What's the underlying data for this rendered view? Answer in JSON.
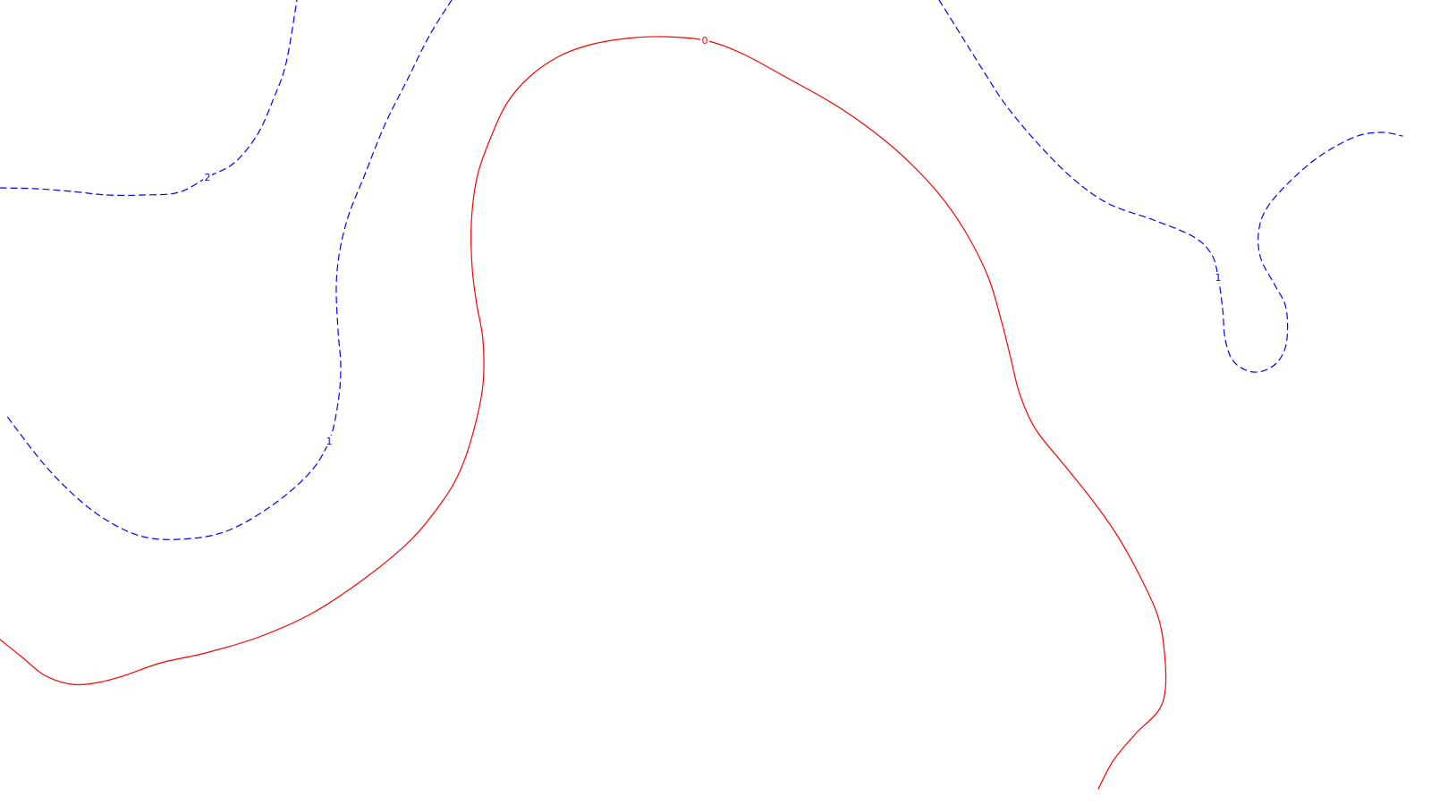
{
  "chart_data": {
    "type": "contour",
    "title": "",
    "xlabel": "",
    "ylabel": "",
    "colors": {
      "positive": "#0000ff",
      "zero": "#ff0000"
    },
    "line_styles": {
      "positive": "dashed",
      "zero": "solid"
    },
    "levels": [
      {
        "level": 2,
        "label": "2",
        "color": "#0000ff",
        "style": "dashed",
        "segments": [
          [
            [
              0,
              210
            ],
            [
              40,
              211
            ],
            [
              80,
              214
            ],
            [
              120,
              218
            ],
            [
              160,
              218
            ],
            [
              200,
              215
            ],
            [
              232,
              198
            ],
            [
              262,
              182
            ],
            [
              288,
              150
            ],
            [
              306,
              110
            ],
            [
              320,
              70
            ],
            [
              332,
              0
            ]
          ]
        ],
        "label_points": [
          [
            232,
            198
          ]
        ]
      },
      {
        "level": 1,
        "label": "1",
        "color": "#0000ff",
        "style": "dashed",
        "segments": [
          [
            [
              505,
              0
            ],
            [
              480,
              40
            ],
            [
              455,
              90
            ],
            [
              430,
              140
            ],
            [
              408,
              195
            ],
            [
              390,
              240
            ],
            [
              380,
              280
            ],
            [
              376,
              320
            ],
            [
              378,
              370
            ],
            [
              381,
              410
            ],
            [
              378,
              450
            ],
            [
              368,
              493
            ],
            [
              345,
              530
            ],
            [
              300,
              568
            ],
            [
              250,
              595
            ],
            [
              200,
              603
            ],
            [
              160,
              600
            ],
            [
              125,
              585
            ],
            [
              90,
              560
            ],
            [
              50,
              520
            ],
            [
              6,
              463
            ]
          ],
          [
            [
              1050,
              0
            ],
            [
              1075,
              40
            ],
            [
              1100,
              80
            ],
            [
              1125,
              118
            ],
            [
              1160,
              160
            ],
            [
              1200,
              200
            ],
            [
              1240,
              228
            ],
            [
              1290,
              246
            ],
            [
              1335,
              265
            ],
            [
              1355,
              285
            ],
            [
              1362,
              310
            ],
            [
              1367,
              345
            ],
            [
              1370,
              380
            ],
            [
              1380,
              405
            ],
            [
              1402,
              416
            ],
            [
              1425,
              408
            ],
            [
              1438,
              385
            ],
            [
              1438,
              345
            ],
            [
              1425,
              318
            ],
            [
              1410,
              290
            ],
            [
              1407,
              262
            ],
            [
              1415,
              235
            ],
            [
              1440,
              205
            ],
            [
              1475,
              175
            ],
            [
              1515,
              153
            ],
            [
              1545,
              148
            ],
            [
              1568,
              152
            ]
          ]
        ],
        "label_points": [
          [
            368,
            493
          ],
          [
            1362,
            310
          ]
        ]
      },
      {
        "level": 0,
        "label": "0",
        "color": "#ff0000",
        "style": "solid",
        "segments": [
          [
            [
              0,
              715
            ],
            [
              25,
              735
            ],
            [
              50,
              755
            ],
            [
              80,
              765
            ],
            [
              110,
              763
            ],
            [
              140,
              755
            ],
            [
              180,
              741
            ],
            [
              230,
              730
            ],
            [
              290,
              712
            ],
            [
              350,
              685
            ],
            [
              410,
              645
            ],
            [
              460,
              603
            ],
            [
              495,
              560
            ],
            [
              515,
              525
            ],
            [
              530,
              480
            ],
            [
              540,
              430
            ],
            [
              540,
              380
            ],
            [
              533,
              340
            ],
            [
              528,
              300
            ],
            [
              527,
              250
            ],
            [
              533,
              200
            ],
            [
              547,
              158
            ],
            [
              567,
              115
            ],
            [
              593,
              85
            ],
            [
              625,
              63
            ],
            [
              660,
              50
            ],
            [
              700,
              43
            ],
            [
              740,
              41
            ],
            [
              788,
              45
            ],
            [
              830,
              60
            ],
            [
              880,
              87
            ],
            [
              930,
              115
            ],
            [
              970,
              142
            ],
            [
              1010,
              175
            ],
            [
              1050,
              217
            ],
            [
              1080,
              260
            ],
            [
              1105,
              310
            ],
            [
              1120,
              360
            ],
            [
              1130,
              400
            ],
            [
              1140,
              440
            ],
            [
              1158,
              480
            ],
            [
              1190,
              520
            ],
            [
              1222,
              560
            ],
            [
              1250,
              600
            ],
            [
              1275,
              645
            ],
            [
              1295,
              690
            ],
            [
              1302,
              730
            ],
            [
              1303,
              770
            ],
            [
              1295,
              795
            ],
            [
              1270,
              820
            ],
            [
              1245,
              850
            ],
            [
              1228,
              882
            ]
          ]
        ],
        "label_points": [
          [
            788,
            45
          ]
        ]
      }
    ]
  }
}
